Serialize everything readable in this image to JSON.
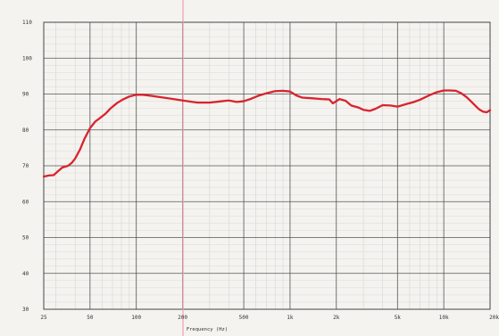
{
  "chart_data": {
    "type": "line",
    "x_scale": "log",
    "y_scale": "linear",
    "xlim": [
      25,
      20000
    ],
    "ylim": [
      30,
      110
    ],
    "xlabel": "Frequency (Hz)",
    "ylabel": "",
    "title": "",
    "grid": true,
    "x_ticks": [
      {
        "value": 25,
        "label": "25"
      },
      {
        "value": 50,
        "label": "50"
      },
      {
        "value": 100,
        "label": "100"
      },
      {
        "value": 200,
        "label": "200"
      },
      {
        "value": 500,
        "label": "500"
      },
      {
        "value": 1000,
        "label": "1k"
      },
      {
        "value": 2000,
        "label": "2k"
      },
      {
        "value": 5000,
        "label": "5k"
      },
      {
        "value": 10000,
        "label": "10k"
      },
      {
        "value": 20000,
        "label": "20k"
      }
    ],
    "y_ticks": [
      {
        "value": 110,
        "label": "110"
      },
      {
        "value": 100,
        "label": "100"
      },
      {
        "value": 90,
        "label": "90"
      },
      {
        "value": 80,
        "label": "80"
      },
      {
        "value": 70,
        "label": "70"
      },
      {
        "value": 60,
        "label": "60"
      },
      {
        "value": 50,
        "label": "50"
      },
      {
        "value": 40,
        "label": "40"
      },
      {
        "value": 30,
        "label": "30"
      }
    ],
    "series": [
      {
        "color": "#d9232e",
        "points": [
          [
            25,
            67
          ],
          [
            27,
            67.3
          ],
          [
            29,
            67.4
          ],
          [
            31,
            68.5
          ],
          [
            33,
            69.5
          ],
          [
            36,
            70
          ],
          [
            38,
            70.8
          ],
          [
            40,
            72
          ],
          [
            43,
            74.5
          ],
          [
            46,
            77.5
          ],
          [
            50,
            80.5
          ],
          [
            54,
            82.3
          ],
          [
            58,
            83.3
          ],
          [
            63,
            84.5
          ],
          [
            68,
            86
          ],
          [
            75,
            87.5
          ],
          [
            82,
            88.5
          ],
          [
            90,
            89.3
          ],
          [
            100,
            89.8
          ],
          [
            110,
            89.8
          ],
          [
            125,
            89.5
          ],
          [
            150,
            89
          ],
          [
            180,
            88.5
          ],
          [
            200,
            88.2
          ],
          [
            250,
            87.6
          ],
          [
            300,
            87.6
          ],
          [
            360,
            88
          ],
          [
            400,
            88.2
          ],
          [
            450,
            87.8
          ],
          [
            500,
            88
          ],
          [
            560,
            88.7
          ],
          [
            630,
            89.6
          ],
          [
            700,
            90.2
          ],
          [
            800,
            90.8
          ],
          [
            900,
            90.9
          ],
          [
            1000,
            90.7
          ],
          [
            1100,
            89.6
          ],
          [
            1200,
            89
          ],
          [
            1400,
            88.8
          ],
          [
            1600,
            88.6
          ],
          [
            1800,
            88.5
          ],
          [
            1900,
            87.4
          ],
          [
            2100,
            88.6
          ],
          [
            2300,
            88.1
          ],
          [
            2500,
            86.8
          ],
          [
            2800,
            86.2
          ],
          [
            3000,
            85.6
          ],
          [
            3300,
            85.3
          ],
          [
            3600,
            85.9
          ],
          [
            4000,
            86.9
          ],
          [
            4500,
            86.8
          ],
          [
            5000,
            86.5
          ],
          [
            5400,
            86.9
          ],
          [
            5800,
            87.3
          ],
          [
            6300,
            87.7
          ],
          [
            7000,
            88.4
          ],
          [
            8000,
            89.6
          ],
          [
            9000,
            90.5
          ],
          [
            10000,
            91
          ],
          [
            11000,
            91
          ],
          [
            12000,
            90.9
          ],
          [
            13000,
            90.2
          ],
          [
            14000,
            89.2
          ],
          [
            15000,
            88
          ],
          [
            16000,
            86.8
          ],
          [
            17000,
            85.7
          ],
          [
            18000,
            85.1
          ],
          [
            19000,
            84.9
          ],
          [
            20000,
            85.5
          ]
        ]
      }
    ]
  }
}
